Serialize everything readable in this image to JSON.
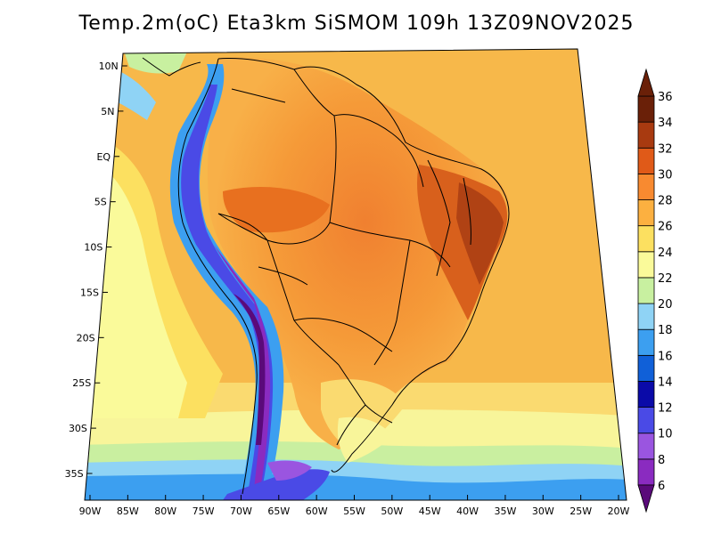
{
  "title": "Temp.2m(oC) Eta3km SiSMOM 109h 13Z09NOV2025",
  "map": {
    "lat_labels": [
      {
        "text": "10N",
        "lat": 10
      },
      {
        "text": "5N",
        "lat": 5
      },
      {
        "text": "EQ",
        "lat": 0
      },
      {
        "text": "5S",
        "lat": -5
      },
      {
        "text": "10S",
        "lat": -10
      },
      {
        "text": "15S",
        "lat": -15
      },
      {
        "text": "20S",
        "lat": -20
      },
      {
        "text": "25S",
        "lat": -25
      },
      {
        "text": "30S",
        "lat": -30
      },
      {
        "text": "35S",
        "lat": -35
      }
    ],
    "lon_labels": [
      {
        "text": "90W",
        "lon": -90
      },
      {
        "text": "85W",
        "lon": -85
      },
      {
        "text": "80W",
        "lon": -80
      },
      {
        "text": "75W",
        "lon": -75
      },
      {
        "text": "70W",
        "lon": -70
      },
      {
        "text": "65W",
        "lon": -65
      },
      {
        "text": "60W",
        "lon": -60
      },
      {
        "text": "55W",
        "lon": -55
      },
      {
        "text": "50W",
        "lon": -50
      },
      {
        "text": "45W",
        "lon": -45
      },
      {
        "text": "40W",
        "lon": -40
      },
      {
        "text": "35W",
        "lon": -35
      },
      {
        "text": "30W",
        "lon": -30
      },
      {
        "text": "25W",
        "lon": -25
      },
      {
        "text": "20W",
        "lon": -20
      }
    ]
  },
  "colorbar": {
    "levels": [
      {
        "label": "6",
        "color": "#5a0a7a"
      },
      {
        "label": "8",
        "color": "#8a2bc0"
      },
      {
        "label": "10",
        "color": "#9a55e0"
      },
      {
        "label": "12",
        "color": "#4a4ae6"
      },
      {
        "label": "14",
        "color": "#0a0aa8"
      },
      {
        "label": "16",
        "color": "#1060d8"
      },
      {
        "label": "18",
        "color": "#3c9ff0"
      },
      {
        "label": "20",
        "color": "#8fd3f5"
      },
      {
        "label": "22",
        "color": "#c8f0a0"
      },
      {
        "label": "24",
        "color": "#fafa9a"
      },
      {
        "label": "26",
        "color": "#fce060"
      },
      {
        "label": "28",
        "color": "#fcb040"
      },
      {
        "label": "30",
        "color": "#f88a30"
      },
      {
        "label": "32",
        "color": "#e05a18"
      },
      {
        "label": "34",
        "color": "#a83a10"
      },
      {
        "label": "36",
        "color": "#6a2008"
      }
    ]
  }
}
